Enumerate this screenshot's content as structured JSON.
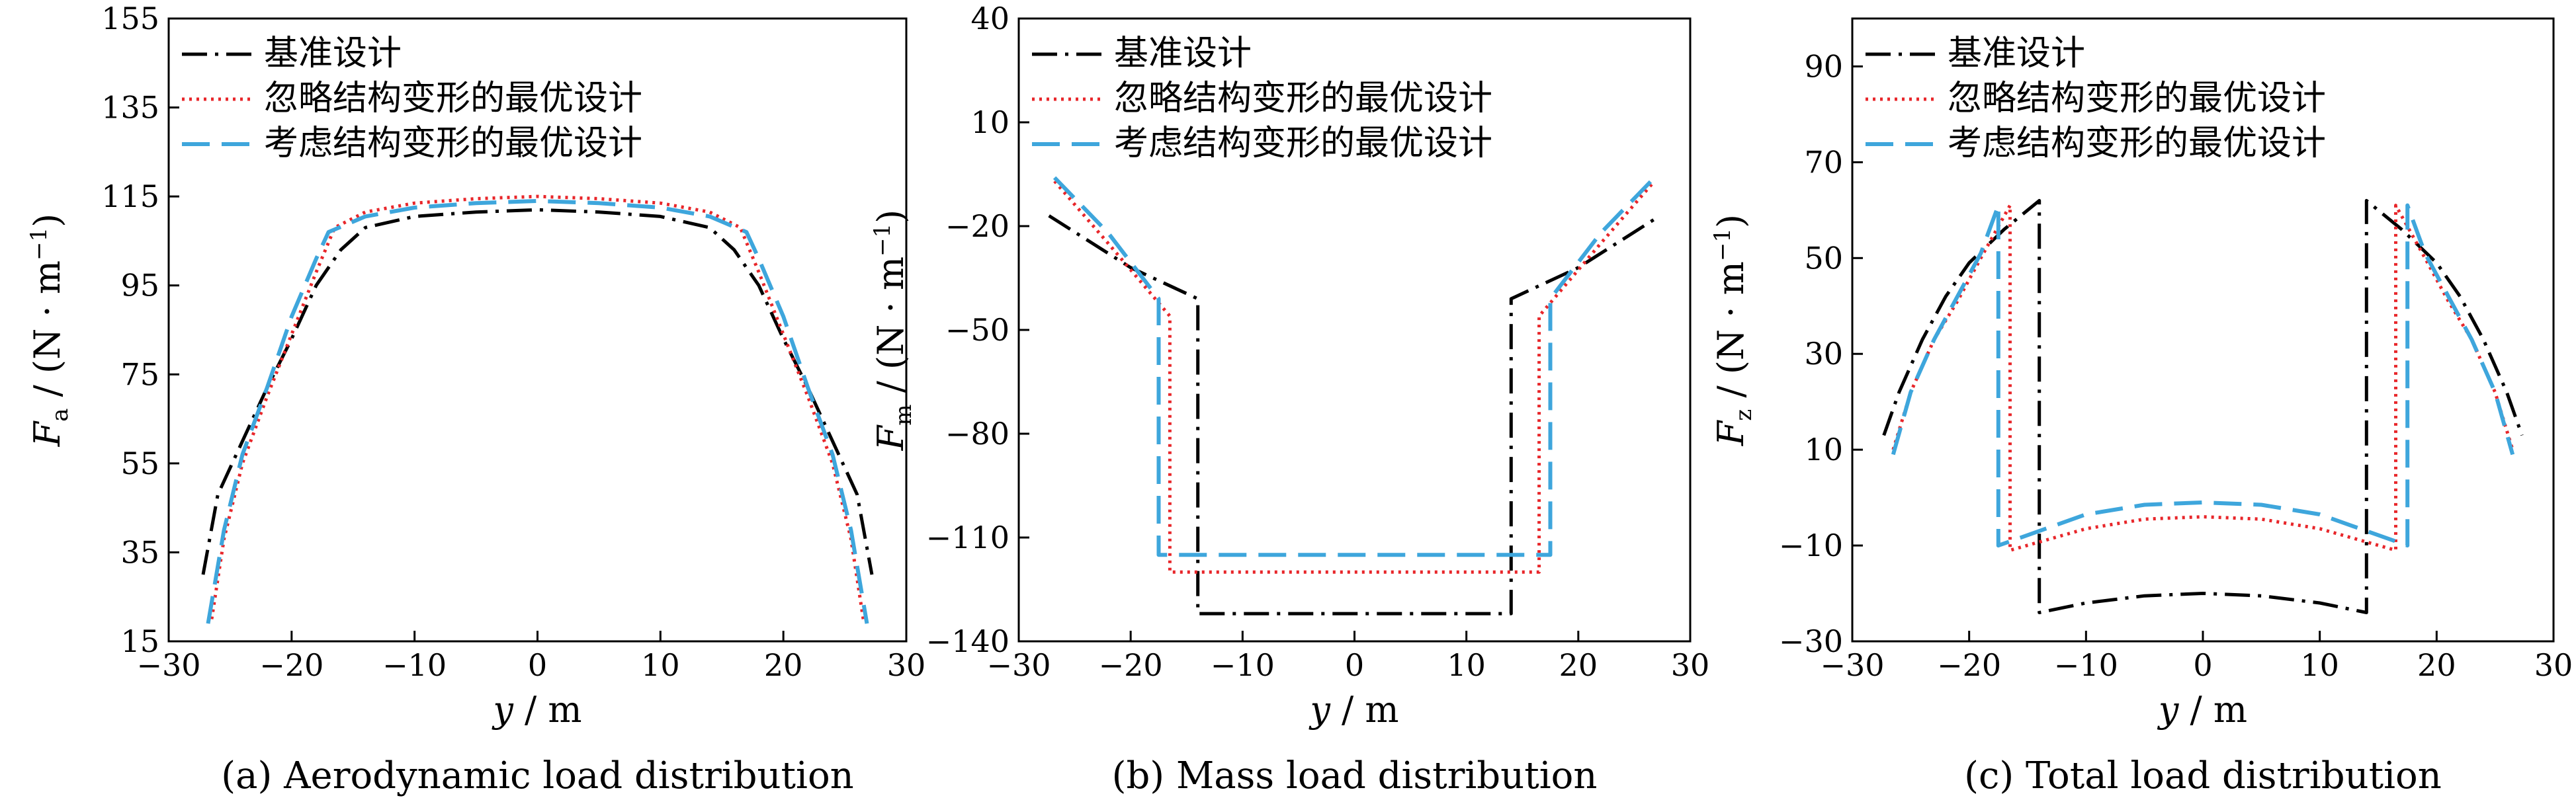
{
  "legend_labels": [
    "基准设计",
    "忽略结构变形的最优设计",
    "考虑结构变形的最优设计"
  ],
  "colors": {
    "baseline": "#000000",
    "ignore": "#e8262a",
    "consider": "#3ea6dc"
  },
  "chart_data": [
    {
      "type": "line",
      "caption": "(a) Aerodynamic load distribution",
      "ylabel_symbol": "F",
      "ylabel_sub": "a",
      "ylabel_unit": "/ (N · m",
      "ylabel_exp": "−1",
      "ylabel_close": ")",
      "xlabel_symbol": "y",
      "xlabel_unit": " / m",
      "xlim": [
        -30,
        30
      ],
      "ylim": [
        15,
        155
      ],
      "xticks": [
        -30,
        -20,
        -10,
        0,
        10,
        20,
        30
      ],
      "yticks": [
        15,
        35,
        55,
        75,
        95,
        115,
        135,
        155
      ],
      "xtick_labels": [
        "−30",
        "−20",
        "−10",
        "0",
        "10",
        "20",
        "30"
      ],
      "ytick_labels": [
        "15",
        "35",
        "55",
        "75",
        "95",
        "115",
        "135",
        "155"
      ],
      "series": [
        {
          "name": "基准设计",
          "style": "dashdot",
          "color": "#000000",
          "points": [
            [
              -27.2,
              30
            ],
            [
              -26,
              48
            ],
            [
              -24,
              60
            ],
            [
              -22,
              72
            ],
            [
              -20,
              83
            ],
            [
              -18,
              95
            ],
            [
              -16,
              103
            ],
            [
              -14,
              108
            ],
            [
              -10,
              110.5
            ],
            [
              -5,
              111.5
            ],
            [
              0,
              112
            ],
            [
              5,
              111.5
            ],
            [
              10,
              110.5
            ],
            [
              14,
              108
            ],
            [
              16,
              103
            ],
            [
              18,
              95
            ],
            [
              20,
              83
            ],
            [
              22,
              72
            ],
            [
              24,
              60
            ],
            [
              26,
              48
            ],
            [
              27.2,
              30
            ]
          ]
        },
        {
          "name": "忽略结构变形的最优设计",
          "style": "dotted",
          "color": "#e8262a",
          "points": [
            [
              -26.5,
              20
            ],
            [
              -25.5,
              38
            ],
            [
              -24,
              55
            ],
            [
              -22,
              70
            ],
            [
              -20,
              84
            ],
            [
              -18,
              98
            ],
            [
              -16.5,
              108
            ],
            [
              -14,
              111.5
            ],
            [
              -10,
              113.5
            ],
            [
              -5,
              114.5
            ],
            [
              0,
              115
            ],
            [
              5,
              114.5
            ],
            [
              10,
              113.5
            ],
            [
              14,
              111.5
            ],
            [
              16.5,
              108
            ],
            [
              18,
              98
            ],
            [
              20,
              84
            ],
            [
              22,
              70
            ],
            [
              24,
              55
            ],
            [
              25.5,
              38
            ],
            [
              26.5,
              20
            ]
          ]
        },
        {
          "name": "考虑结构变形的最优设计",
          "style": "dashed",
          "color": "#3ea6dc",
          "points": [
            [
              -26.8,
              19
            ],
            [
              -25.5,
              40
            ],
            [
              -24,
              57
            ],
            [
              -22,
              72
            ],
            [
              -20,
              88
            ],
            [
              -18,
              101
            ],
            [
              -17,
              107
            ],
            [
              -14,
              110.5
            ],
            [
              -10,
              112.5
            ],
            [
              -5,
              113.5
            ],
            [
              0,
              114
            ],
            [
              5,
              113.5
            ],
            [
              10,
              112.5
            ],
            [
              14,
              110.5
            ],
            [
              17,
              107
            ],
            [
              18,
              101
            ],
            [
              20,
              88
            ],
            [
              22,
              72
            ],
            [
              24,
              57
            ],
            [
              25.5,
              40
            ],
            [
              26.8,
              19
            ]
          ]
        }
      ]
    },
    {
      "type": "line",
      "caption": "(b) Mass load distribution",
      "ylabel_symbol": "F",
      "ylabel_sub": "m",
      "ylabel_unit": "/ (N · m",
      "ylabel_exp": "−1",
      "ylabel_close": ")",
      "xlabel_symbol": "y",
      "xlabel_unit": " / m",
      "xlim": [
        -30,
        30
      ],
      "ylim": [
        -140,
        40
      ],
      "xticks": [
        -30,
        -20,
        -10,
        0,
        10,
        20,
        30
      ],
      "yticks": [
        -140,
        -110,
        -80,
        -50,
        -20,
        10,
        40
      ],
      "xtick_labels": [
        "−30",
        "−20",
        "−10",
        "0",
        "10",
        "20",
        "30"
      ],
      "ytick_labels": [
        "−140",
        "−110",
        "−80",
        "−50",
        "−20",
        "10",
        "40"
      ],
      "series": [
        {
          "name": "基准设计",
          "style": "dashdot",
          "color": "#000000",
          "points": [
            [
              -27.3,
              -17
            ],
            [
              -20,
              -32
            ],
            [
              -14,
              -41
            ],
            [
              -14,
              -132
            ],
            [
              14,
              -132
            ],
            [
              14,
              -41
            ],
            [
              20,
              -32
            ],
            [
              27.3,
              -17
            ]
          ]
        },
        {
          "name": "忽略结构变形的最优设计",
          "style": "dotted",
          "color": "#e8262a",
          "points": [
            [
              -26.8,
              -7
            ],
            [
              -22,
              -25
            ],
            [
              -16.5,
              -46
            ],
            [
              -16.5,
              -120
            ],
            [
              16.5,
              -120
            ],
            [
              16.5,
              -46
            ],
            [
              22,
              -25
            ],
            [
              26.8,
              -7
            ]
          ]
        },
        {
          "name": "考虑结构变形的最优设计",
          "style": "dashed",
          "color": "#3ea6dc",
          "points": [
            [
              -26.8,
              -6
            ],
            [
              -22,
              -22
            ],
            [
              -17.5,
              -41
            ],
            [
              -17.5,
              -115
            ],
            [
              17.5,
              -115
            ],
            [
              17.5,
              -41
            ],
            [
              22,
              -22
            ],
            [
              26.8,
              -6
            ]
          ]
        }
      ]
    },
    {
      "type": "line",
      "caption": "(c) Total load distribution",
      "ylabel_symbol": "F",
      "ylabel_sub": "z",
      "ylabel_unit": "/ (N · m",
      "ylabel_exp": "−1",
      "ylabel_close": ")",
      "xlabel_symbol": "y",
      "xlabel_unit": " / m",
      "xlim": [
        -30,
        30
      ],
      "ylim": [
        -30,
        100
      ],
      "xticks": [
        -30,
        -20,
        -10,
        0,
        10,
        20,
        30
      ],
      "yticks": [
        -30,
        -10,
        10,
        30,
        50,
        70,
        90
      ],
      "xtick_labels": [
        "−30",
        "−20",
        "−10",
        "0",
        "10",
        "20",
        "30"
      ],
      "ytick_labels": [
        "−30",
        "−10",
        "10",
        "30",
        "50",
        "70",
        "90"
      ],
      "series": [
        {
          "name": "基准设计",
          "style": "dashdot",
          "color": "#000000",
          "points": [
            [
              -27.3,
              13
            ],
            [
              -26,
              22
            ],
            [
              -24,
              33
            ],
            [
              -22,
              42
            ],
            [
              -20,
              49
            ],
            [
              -17,
              56
            ],
            [
              -14,
              62
            ],
            [
              -14,
              -24
            ],
            [
              -10,
              -22
            ],
            [
              -5,
              -20.5
            ],
            [
              0,
              -20
            ],
            [
              5,
              -20.5
            ],
            [
              10,
              -22
            ],
            [
              14,
              -24
            ],
            [
              14,
              62
            ],
            [
              17,
              56
            ],
            [
              20,
              49
            ],
            [
              22,
              42
            ],
            [
              24,
              33
            ],
            [
              26,
              22
            ],
            [
              27.3,
              13
            ]
          ]
        },
        {
          "name": "忽略结构变形的最优设计",
          "style": "dotted",
          "color": "#e8262a",
          "points": [
            [
              -26.5,
              10
            ],
            [
              -25,
              22
            ],
            [
              -23,
              33
            ],
            [
              -21,
              41
            ],
            [
              -19,
              50
            ],
            [
              -16.5,
              61
            ],
            [
              -16.5,
              -11
            ],
            [
              -10,
              -6.5
            ],
            [
              -5,
              -4.5
            ],
            [
              0,
              -4
            ],
            [
              5,
              -4.5
            ],
            [
              10,
              -6.5
            ],
            [
              16.5,
              -11
            ],
            [
              16.5,
              61
            ],
            [
              19,
              50
            ],
            [
              21,
              41
            ],
            [
              23,
              33
            ],
            [
              25,
              22
            ],
            [
              26.5,
              10
            ]
          ]
        },
        {
          "name": "考虑结构变形的最优设计",
          "style": "dashed",
          "color": "#3ea6dc",
          "points": [
            [
              -26.5,
              9
            ],
            [
              -25,
              22
            ],
            [
              -23,
              33
            ],
            [
              -21,
              42
            ],
            [
              -19,
              51
            ],
            [
              -17.5,
              61
            ],
            [
              -17.5,
              -10
            ],
            [
              -10,
              -3.5
            ],
            [
              -5,
              -1.5
            ],
            [
              0,
              -1
            ],
            [
              5,
              -1.5
            ],
            [
              10,
              -3.5
            ],
            [
              17.5,
              -10
            ],
            [
              17.5,
              61
            ],
            [
              19,
              51
            ],
            [
              21,
              42
            ],
            [
              23,
              33
            ],
            [
              25,
              22
            ],
            [
              26.5,
              9
            ]
          ]
        }
      ]
    }
  ]
}
